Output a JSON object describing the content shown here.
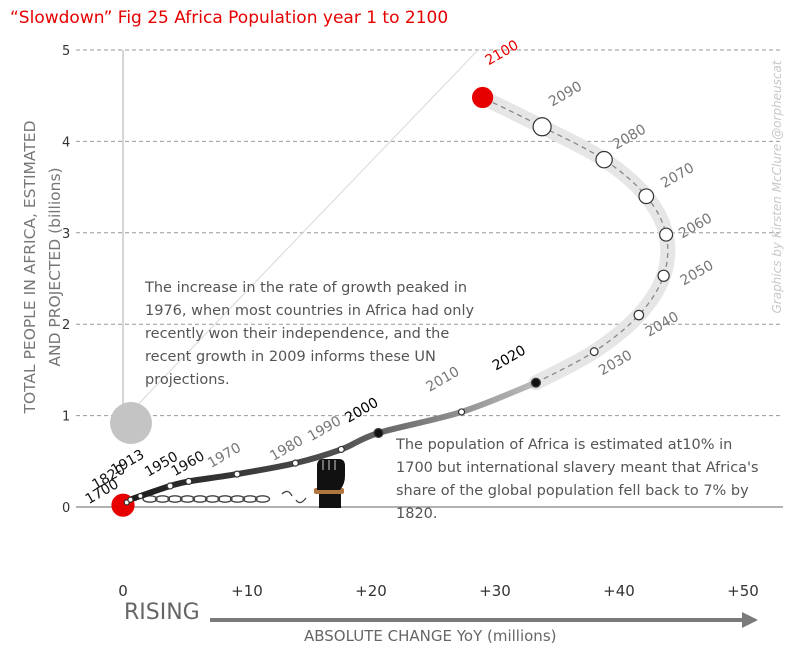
{
  "title": "“Slowdown” Fig 25 Africa Population year 1 to 2100",
  "credit": "Graphics by Kirsten McClure @orpheuscat",
  "annotations": {
    "peak": "The increase in the rate of growth peaked in 1976, when most countries in Africa had only recently won their independence, and the recent growth in 2009 informs these UN projections.",
    "slavery": "The population of Africa is estimated at10% in 1700 but international slavery meant that Africa's share of the global population fell back to 7% by 1820."
  },
  "colors": {
    "accent": "#e60000",
    "grid": "#999999",
    "path_light": "#e6e6e6",
    "path_dark": "#333333",
    "text": "#666666"
  },
  "icons": [
    "raised-fist-icon",
    "broken-chain-icon"
  ],
  "chart_data": {
    "type": "scatter",
    "title": "“Slowdown” Fig 25 Africa Population year 1 to 2100",
    "ylabel_line1": "TOTAL PEOPLE IN AFRICA, ESTIMATED",
    "ylabel_line2": "AND PROJECTED (billions)",
    "xlabel": "ABSOLUTE CHANGE YoY (millions)",
    "x_arrow_label": "RISING",
    "xlim": [
      0,
      50
    ],
    "ylim": [
      0,
      5
    ],
    "xticks": [
      "0",
      "+10",
      "+20",
      "+30",
      "+40",
      "+50"
    ],
    "yticks": [
      "0",
      "1",
      "2",
      "3",
      "4",
      "5"
    ],
    "grid": "horizontal dashed",
    "points": [
      {
        "label": "1",
        "x": 0.0,
        "y": 0.02,
        "past": true
      },
      {
        "label": "1700",
        "x": 0.3,
        "y": 0.05,
        "past": true
      },
      {
        "label": "1820",
        "x": 0.6,
        "y": 0.08,
        "past": true
      },
      {
        "label": "1913",
        "x": 1.4,
        "y": 0.12,
        "past": true
      },
      {
        "label": "1950",
        "x": 3.8,
        "y": 0.23,
        "past": true
      },
      {
        "label": "1960",
        "x": 5.3,
        "y": 0.28,
        "past": true
      },
      {
        "label": "1970",
        "x": 9.2,
        "y": 0.36,
        "past": true
      },
      {
        "label": "1980",
        "x": 13.9,
        "y": 0.48,
        "past": true
      },
      {
        "label": "1990",
        "x": 17.6,
        "y": 0.63,
        "past": true
      },
      {
        "label": "2000",
        "x": 20.6,
        "y": 0.81,
        "past": true
      },
      {
        "label": "2010",
        "x": 27.3,
        "y": 1.04,
        "past": true
      },
      {
        "label": "2020",
        "x": 33.3,
        "y": 1.36,
        "past": true
      },
      {
        "label": "2030",
        "x": 38.0,
        "y": 1.7,
        "past": false
      },
      {
        "label": "2040",
        "x": 41.6,
        "y": 2.1,
        "past": false
      },
      {
        "label": "2050",
        "x": 43.6,
        "y": 2.53,
        "past": false
      },
      {
        "label": "2060",
        "x": 43.8,
        "y": 2.98,
        "past": false
      },
      {
        "label": "2070",
        "x": 42.2,
        "y": 3.4,
        "past": false
      },
      {
        "label": "2080",
        "x": 38.8,
        "y": 3.8,
        "past": false
      },
      {
        "label": "2090",
        "x": 33.8,
        "y": 4.16,
        "past": false
      },
      {
        "label": "2100",
        "x": 29.0,
        "y": 4.48,
        "past": false
      }
    ]
  }
}
